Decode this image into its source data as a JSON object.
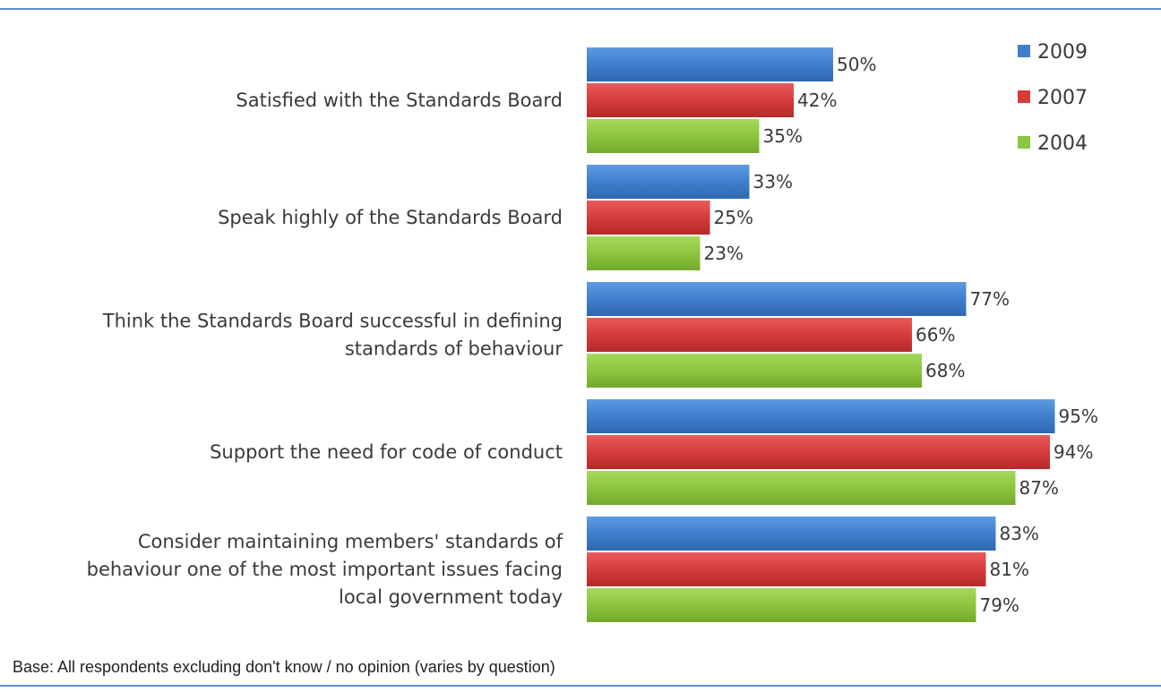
{
  "chart_data": {
    "type": "bar",
    "orientation": "horizontal",
    "categories": [
      [
        "Satisfied with the Standards Board"
      ],
      [
        "Speak highly of the Standards Board"
      ],
      [
        "Think the Standards Board successful in defining",
        "standards of behaviour"
      ],
      [
        "Support the need for code of conduct"
      ],
      [
        "Consider maintaining members' standards of",
        "behaviour one of the most important issues facing",
        "local government today"
      ]
    ],
    "series": [
      {
        "name": "2009",
        "color": "#3f7fce",
        "values": [
          50,
          33,
          77,
          95,
          83
        ],
        "labels": [
          "50%",
          "33%",
          "77%",
          "95%",
          "83%"
        ]
      },
      {
        "name": "2007",
        "color": "#d63b3b",
        "values": [
          42,
          25,
          66,
          94,
          81
        ],
        "labels": [
          "42%",
          "25%",
          "66%",
          "94%",
          "81%"
        ]
      },
      {
        "name": "2004",
        "color": "#8dc63f",
        "values": [
          35,
          23,
          68,
          87,
          79
        ],
        "labels": [
          "35%",
          "23%",
          "68%",
          "87%",
          "79%"
        ]
      }
    ],
    "xlim": [
      0,
      100
    ],
    "grid": false,
    "legend": "top-right",
    "footnote": "Base: All respondents excluding don't know / no opinion (varies by question)"
  }
}
